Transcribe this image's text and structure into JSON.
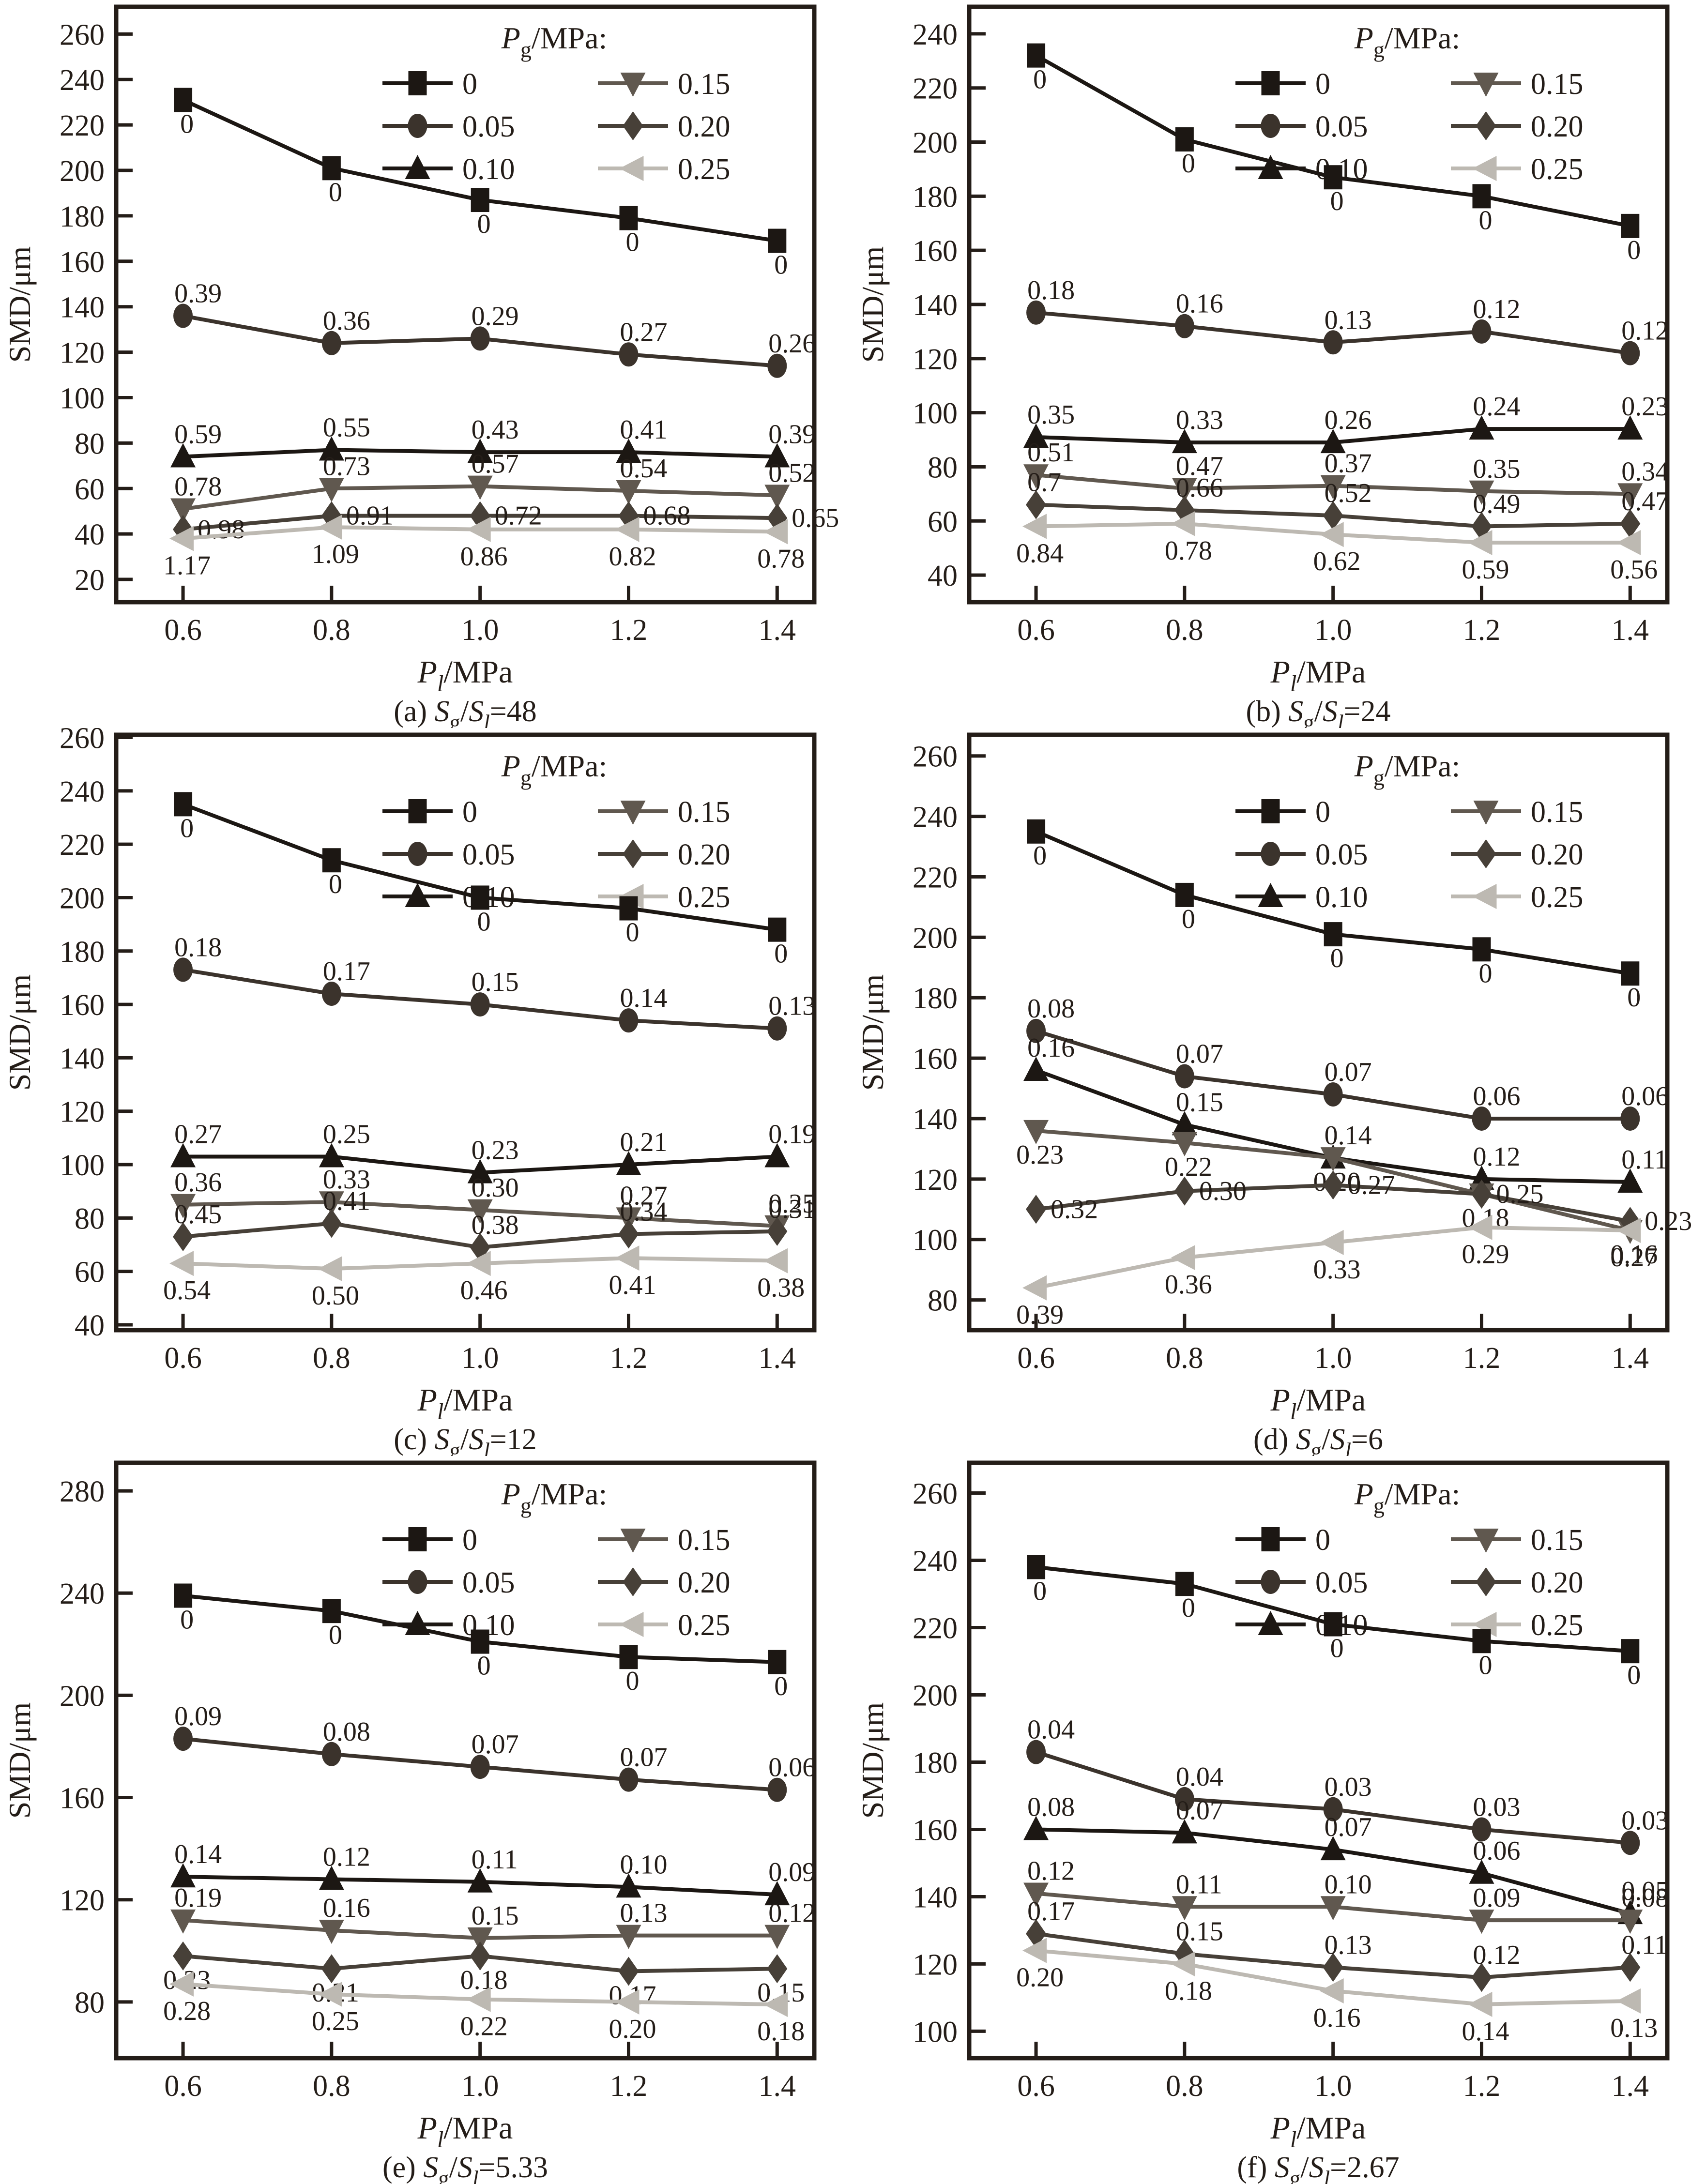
{
  "figure": {
    "y_axis_label": "SMD/μm",
    "x_axis_label": {
      "symbol": "P",
      "sub": "l",
      "unit": "/MPa"
    },
    "legend": {
      "title": {
        "symbol": "P",
        "sub": "g",
        "unit": "/MPa:"
      },
      "columns": [
        [
          "0",
          "0.05",
          "0.10"
        ],
        [
          "0.15",
          "0.20",
          "0.25"
        ]
      ]
    },
    "series_styles": {
      "0": {
        "marker": "square",
        "color": "#1c1713",
        "label_color": "#241d18"
      },
      "0.05": {
        "marker": "circle",
        "color": "#3b332c",
        "label_color": "#241d18"
      },
      "0.10": {
        "marker": "triangle-up",
        "color": "#1c1713",
        "label_color": "#241d18"
      },
      "0.15": {
        "marker": "triangle-down",
        "color": "#60584f",
        "label_color": "#241d18"
      },
      "0.20": {
        "marker": "diamond",
        "color": "#474038",
        "label_color": "#241d18"
      },
      "0.25": {
        "marker": "triangle-left",
        "color": "#bdb9b2",
        "label_color": "#b7b3ac"
      }
    },
    "frame_color": "#241d18"
  },
  "chart_data": [
    {
      "type": "line",
      "id": "a",
      "caption": {
        "index": "(a)",
        "numerator": "S",
        "numerator_sub": "g",
        "denominator": "S",
        "denominator_sub": "l",
        "value": "48"
      },
      "x": [
        0.6,
        0.8,
        1.0,
        1.2,
        1.4
      ],
      "xtick_labels": [
        "0.6",
        "0.8",
        "1.0",
        "1.2",
        "1.4"
      ],
      "xlim": [
        0.51,
        1.45
      ],
      "ylim": [
        10,
        272
      ],
      "yticks": [
        20,
        40,
        60,
        80,
        100,
        120,
        140,
        160,
        180,
        200,
        220,
        240,
        260
      ],
      "series": [
        {
          "name": "0",
          "label_pos": "below",
          "values": [
            231,
            201,
            187,
            179,
            169
          ],
          "point_labels": [
            "0",
            "0",
            "0",
            "0",
            "0"
          ]
        },
        {
          "name": "0.05",
          "label_pos": "above",
          "values": [
            136,
            124,
            126,
            119,
            114
          ],
          "point_labels": [
            "0.39",
            "0.36",
            "0.29",
            "0.27",
            "0.26"
          ]
        },
        {
          "name": "0.10",
          "label_pos": "above",
          "values": [
            74,
            77,
            76,
            76,
            74
          ],
          "point_labels": [
            "0.59",
            "0.55",
            "0.43",
            "0.41",
            "0.39"
          ]
        },
        {
          "name": "0.15",
          "label_pos": "above",
          "values": [
            51,
            60,
            61,
            59,
            57
          ],
          "point_labels": [
            "0.78",
            "0.73",
            "0.57",
            "0.54",
            "0.52"
          ]
        },
        {
          "name": "0.20",
          "label_pos": "right",
          "values": [
            42,
            48,
            48,
            48,
            47
          ],
          "point_labels": [
            "0.98",
            "0.91",
            "0.72",
            "0.68",
            "0.65"
          ]
        },
        {
          "name": "0.25",
          "label_pos": "below",
          "values": [
            38,
            43,
            42,
            42,
            41
          ],
          "point_labels": [
            "1.17",
            "1.09",
            "0.86",
            "0.82",
            "0.78"
          ]
        }
      ]
    },
    {
      "type": "line",
      "id": "b",
      "caption": {
        "index": "(b)",
        "numerator": "S",
        "numerator_sub": "g",
        "denominator": "S",
        "denominator_sub": "l",
        "value": "24"
      },
      "x": [
        0.6,
        0.8,
        1.0,
        1.2,
        1.4
      ],
      "xtick_labels": [
        "0.6",
        "0.8",
        "1.0",
        "1.2",
        "1.4"
      ],
      "xlim": [
        0.51,
        1.45
      ],
      "ylim": [
        30,
        250
      ],
      "yticks": [
        40,
        60,
        80,
        100,
        120,
        140,
        160,
        180,
        200,
        220,
        240
      ],
      "series": [
        {
          "name": "0",
          "label_pos": "below",
          "values": [
            232,
            201,
            187,
            180,
            169
          ],
          "point_labels": [
            "0",
            "0",
            "0",
            "0",
            "0"
          ]
        },
        {
          "name": "0.05",
          "label_pos": "above",
          "values": [
            137,
            132,
            126,
            130,
            122
          ],
          "point_labels": [
            "0.18",
            "0.16",
            "0.13",
            "0.12",
            "0.12"
          ]
        },
        {
          "name": "0.10",
          "label_pos": "above",
          "values": [
            91,
            89,
            89,
            94,
            94
          ],
          "point_labels": [
            "0.35",
            "0.33",
            "0.26",
            "0.24",
            "0.23"
          ]
        },
        {
          "name": "0.15",
          "label_pos": "above",
          "values": [
            77,
            72,
            73,
            71,
            70
          ],
          "point_labels": [
            "0.51",
            "0.47",
            "0.37",
            "0.35",
            "0.34"
          ]
        },
        {
          "name": "0.20",
          "label_pos": "above",
          "values": [
            66,
            64,
            62,
            58,
            59
          ],
          "point_labels": [
            "0.7",
            "0.66",
            "0.52",
            "0.49",
            "0.47"
          ]
        },
        {
          "name": "0.25",
          "label_pos": "below",
          "values": [
            58,
            59,
            55,
            52,
            52
          ],
          "point_labels": [
            "0.84",
            "0.78",
            "0.62",
            "0.59",
            "0.56"
          ]
        }
      ]
    },
    {
      "type": "line",
      "id": "c",
      "caption": {
        "index": "(c)",
        "numerator": "S",
        "numerator_sub": "g",
        "denominator": "S",
        "denominator_sub": "l",
        "value": "12"
      },
      "x": [
        0.6,
        0.8,
        1.0,
        1.2,
        1.4
      ],
      "xtick_labels": [
        "0.6",
        "0.8",
        "1.0",
        "1.2",
        "1.4"
      ],
      "xlim": [
        0.51,
        1.45
      ],
      "ylim": [
        38,
        261
      ],
      "yticks": [
        40,
        60,
        80,
        100,
        120,
        140,
        160,
        180,
        200,
        220,
        240,
        260
      ],
      "series": [
        {
          "name": "0",
          "label_pos": "below",
          "values": [
            235,
            214,
            200,
            196,
            188
          ],
          "point_labels": [
            "0",
            "0",
            "0",
            "0",
            "0"
          ]
        },
        {
          "name": "0.05",
          "label_pos": "above",
          "values": [
            173,
            164,
            160,
            154,
            151
          ],
          "point_labels": [
            "0.18",
            "0.17",
            "0.15",
            "0.14",
            "0.13"
          ]
        },
        {
          "name": "0.10",
          "label_pos": "above",
          "values": [
            103,
            103,
            97,
            100,
            103
          ],
          "point_labels": [
            "0.27",
            "0.25",
            "0.23",
            "0.21",
            "0.19"
          ]
        },
        {
          "name": "0.15",
          "label_pos": "above",
          "values": [
            85,
            86,
            83,
            80,
            77
          ],
          "point_labels": [
            "0.36",
            "0.33",
            "0.30",
            "0.27",
            "0.25"
          ]
        },
        {
          "name": "0.20",
          "label_pos": "above",
          "values": [
            73,
            78,
            69,
            74,
            75
          ],
          "point_labels": [
            "0.45",
            "0.41",
            "0.38",
            "0.34",
            "0.31"
          ]
        },
        {
          "name": "0.25",
          "label_pos": "below",
          "values": [
            63,
            61,
            63,
            65,
            64
          ],
          "point_labels": [
            "0.54",
            "0.50",
            "0.46",
            "0.41",
            "0.38"
          ]
        }
      ]
    },
    {
      "type": "line",
      "id": "d",
      "caption": {
        "index": "(d)",
        "numerator": "S",
        "numerator_sub": "g",
        "denominator": "S",
        "denominator_sub": "l",
        "value": "6"
      },
      "x": [
        0.6,
        0.8,
        1.0,
        1.2,
        1.4
      ],
      "xtick_labels": [
        "0.6",
        "0.8",
        "1.0",
        "1.2",
        "1.4"
      ],
      "xlim": [
        0.51,
        1.45
      ],
      "ylim": [
        70,
        267
      ],
      "yticks": [
        80,
        100,
        120,
        140,
        160,
        180,
        200,
        220,
        240,
        260
      ],
      "series": [
        {
          "name": "0",
          "label_pos": "below",
          "values": [
            235,
            214,
            201,
            196,
            188
          ],
          "point_labels": [
            "0",
            "0",
            "0",
            "0",
            "0"
          ]
        },
        {
          "name": "0.05",
          "label_pos": "above",
          "values": [
            169,
            154,
            148,
            140,
            140
          ],
          "point_labels": [
            "0.08",
            "0.07",
            "0.07",
            "0.06",
            "0.06"
          ]
        },
        {
          "name": "0.10",
          "label_pos": "above",
          "values": [
            156,
            138,
            127,
            120,
            119
          ],
          "point_labels": [
            "0.16",
            "0.15",
            "0.14",
            "0.12",
            "0.11"
          ]
        },
        {
          "name": "0.15",
          "label_pos": "below",
          "values": [
            136,
            132,
            127,
            115,
            103
          ],
          "point_labels": [
            "0.23",
            "0.22",
            "0.20",
            "0.18",
            "0.16"
          ]
        },
        {
          "name": "0.20",
          "label_pos": "right",
          "values": [
            110,
            116,
            118,
            115,
            106
          ],
          "point_labels": [
            "0.32",
            "0.30",
            "0.27",
            "0.25",
            "0.23"
          ]
        },
        {
          "name": "0.25",
          "label_pos": "below",
          "values": [
            84,
            94,
            99,
            104,
            103
          ],
          "point_labels": [
            "0.39",
            "0.36",
            "0.33",
            "0.29",
            "0.27"
          ]
        }
      ]
    },
    {
      "type": "line",
      "id": "e",
      "caption": {
        "index": "(e)",
        "numerator": "S",
        "numerator_sub": "g",
        "denominator": "S",
        "denominator_sub": "l",
        "value": "5.33"
      },
      "x": [
        0.6,
        0.8,
        1.0,
        1.2,
        1.4
      ],
      "xtick_labels": [
        "0.6",
        "0.8",
        "1.0",
        "1.2",
        "1.4"
      ],
      "xlim": [
        0.51,
        1.45
      ],
      "ylim": [
        58,
        291
      ],
      "yticks": [
        80,
        120,
        160,
        200,
        240,
        280
      ],
      "series": [
        {
          "name": "0",
          "label_pos": "below",
          "values": [
            239,
            233,
            221,
            215,
            213
          ],
          "point_labels": [
            "0",
            "0",
            "0",
            "0",
            "0"
          ]
        },
        {
          "name": "0.05",
          "label_pos": "above",
          "values": [
            183,
            177,
            172,
            167,
            163
          ],
          "point_labels": [
            "0.09",
            "0.08",
            "0.07",
            "0.07",
            "0.06"
          ]
        },
        {
          "name": "0.10",
          "label_pos": "above",
          "values": [
            129,
            128,
            127,
            125,
            122
          ],
          "point_labels": [
            "0.14",
            "0.12",
            "0.11",
            "0.10",
            "0.09"
          ]
        },
        {
          "name": "0.15",
          "label_pos": "above",
          "values": [
            112,
            108,
            105,
            106,
            106
          ],
          "point_labels": [
            "0.19",
            "0.16",
            "0.15",
            "0.13",
            "0.12"
          ]
        },
        {
          "name": "0.20",
          "label_pos": "below",
          "values": [
            98,
            93,
            98,
            92,
            93
          ],
          "point_labels": [
            "0.23",
            "0.21",
            "0.18",
            "0.17",
            "0.15"
          ]
        },
        {
          "name": "0.25",
          "label_pos": "below",
          "values": [
            87,
            83,
            81,
            80,
            79
          ],
          "point_labels": [
            "0.28",
            "0.25",
            "0.22",
            "0.20",
            "0.18"
          ]
        }
      ]
    },
    {
      "type": "line",
      "id": "f",
      "caption": {
        "index": "(f)",
        "numerator": "S",
        "numerator_sub": "g",
        "denominator": "S",
        "denominator_sub": "l",
        "value": "2.67"
      },
      "x": [
        0.6,
        0.8,
        1.0,
        1.2,
        1.4
      ],
      "xtick_labels": [
        "0.6",
        "0.8",
        "1.0",
        "1.2",
        "1.4"
      ],
      "xlim": [
        0.51,
        1.45
      ],
      "ylim": [
        92,
        269
      ],
      "yticks": [
        100,
        120,
        140,
        160,
        180,
        200,
        220,
        240,
        260
      ],
      "series": [
        {
          "name": "0",
          "label_pos": "below",
          "values": [
            238,
            233,
            221,
            216,
            213
          ],
          "point_labels": [
            "0",
            "0",
            "0",
            "0",
            "0"
          ]
        },
        {
          "name": "0.05",
          "label_pos": "above",
          "values": [
            183,
            169,
            166,
            160,
            156
          ],
          "point_labels": [
            "0.04",
            "0.04",
            "0.03",
            "0.03",
            "0.03"
          ]
        },
        {
          "name": "0.10",
          "label_pos": "above",
          "values": [
            160,
            159,
            154,
            147,
            135
          ],
          "point_labels": [
            "0.08",
            "0.07",
            "0.07",
            "0.06",
            "0.05"
          ]
        },
        {
          "name": "0.15",
          "label_pos": "above",
          "values": [
            141,
            137,
            137,
            133,
            133
          ],
          "point_labels": [
            "0.12",
            "0.11",
            "0.10",
            "0.09",
            "0.08"
          ]
        },
        {
          "name": "0.20",
          "label_pos": "above",
          "values": [
            129,
            123,
            119,
            116,
            119
          ],
          "point_labels": [
            "0.17",
            "0.15",
            "0.13",
            "0.12",
            "0.11"
          ]
        },
        {
          "name": "0.25",
          "label_pos": "below",
          "values": [
            124,
            120,
            112,
            108,
            109
          ],
          "point_labels": [
            "0.20",
            "0.18",
            "0.16",
            "0.14",
            "0.13"
          ]
        }
      ]
    }
  ]
}
